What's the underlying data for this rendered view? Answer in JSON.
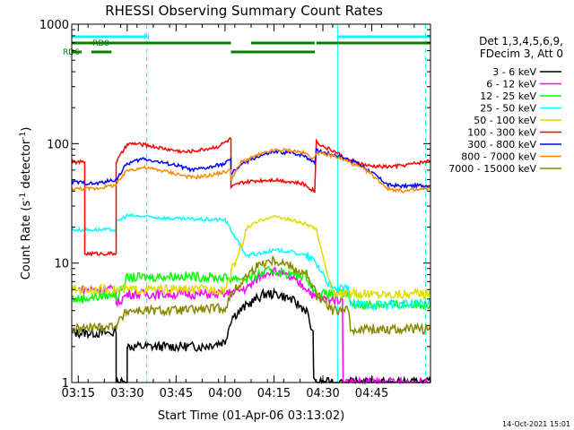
{
  "chart_data": {
    "type": "line",
    "title": "RHESSI Observing Summary Count Rates",
    "xlabel": "Start Time (01-Apr-06 03:13:02)",
    "ylabel_main": "Count Rate (s",
    "ylabel_sup1": "-1",
    "ylabel_mid": " detector",
    "ylabel_sup2": "-1",
    "ylabel_end": ")",
    "y_scale": "log",
    "xlim_min": [
      193,
      303
    ],
    "ylim": [
      1,
      1000
    ],
    "x_ticks": [
      {
        "value": 195,
        "label": "03:15"
      },
      {
        "value": 210,
        "label": "03:30"
      },
      {
        "value": 225,
        "label": "03:45"
      },
      {
        "value": 240,
        "label": "04:00"
      },
      {
        "value": 255,
        "label": "04:15"
      },
      {
        "value": 270,
        "label": "04:30"
      },
      {
        "value": 285,
        "label": "04:45"
      }
    ],
    "y_ticks": [
      {
        "value": 1,
        "label": "1"
      },
      {
        "value": 10,
        "label": "10"
      },
      {
        "value": 100,
        "label": "100"
      },
      {
        "value": 1000,
        "label": "1000"
      }
    ],
    "legend_header": [
      "Det 1,3,4,5,6,9,",
      "FDecim 3, Att 0"
    ],
    "legend_position": "right",
    "series": [
      {
        "name": "3 - 6 keV",
        "color": "#000000",
        "x": [
          193,
          206.6,
          206.6,
          210,
          210,
          225,
          233,
          240,
          242,
          247,
          252,
          256,
          260,
          265,
          267,
          267.2,
          270,
          274,
          278,
          278.2,
          303
        ],
        "y": [
          2.6,
          2.6,
          1,
          1,
          2,
          2,
          2,
          2.2,
          3.5,
          4.5,
          5.5,
          5.5,
          5,
          4,
          2.5,
          1,
          1,
          1,
          1,
          1,
          1
        ]
      },
      {
        "name": "6 - 12 keV",
        "color": "#ff00ff",
        "x": [
          195,
          206.6,
          206.6,
          210,
          225,
          240,
          247,
          250,
          253,
          256,
          260,
          265,
          268,
          273,
          274,
          276,
          276.2,
          303
        ],
        "y": [
          6,
          6,
          4.5,
          5.5,
          5.5,
          5.5,
          6.2,
          7.5,
          8.5,
          8.5,
          7.5,
          6.2,
          5,
          5,
          5,
          5,
          1,
          1
        ]
      },
      {
        "name": "12 - 25 keV",
        "color": "#00ff00",
        "x": [
          193,
          195,
          206.6,
          206.6,
          210,
          225,
          240,
          247,
          250,
          253,
          256,
          260,
          265,
          268,
          273,
          278,
          278.5,
          290,
          303
        ],
        "y": [
          5,
          5,
          5.5,
          5,
          7.5,
          7.8,
          7.5,
          7.5,
          8,
          8.5,
          8.5,
          8,
          7.8,
          5.5,
          5.5,
          5.5,
          4.5,
          4.5,
          4.5
        ]
      },
      {
        "name": "25 - 50 keV",
        "color": "#00ffff",
        "x": [
          193,
          200,
          206.6,
          206.6,
          210,
          225,
          240,
          247,
          250,
          253,
          256,
          260,
          265,
          268,
          273,
          278,
          278.5,
          290,
          303
        ],
        "y": [
          19,
          19,
          19,
          22,
          25,
          23.5,
          23,
          11,
          12,
          12.5,
          12.8,
          12.5,
          11.5,
          10,
          6,
          6,
          4.5,
          4.5,
          4.5
        ]
      },
      {
        "name": "50 - 100 keV",
        "color": "#dddd00",
        "x": [
          193,
          195,
          206.6,
          206.6,
          210,
          225,
          240,
          247,
          250,
          253,
          256,
          260,
          265,
          268,
          273,
          278,
          278.5,
          303
        ],
        "y": [
          6,
          6,
          6,
          6,
          6,
          6,
          6,
          20,
          22,
          24,
          24.5,
          23,
          21,
          19,
          5.5,
          5.5,
          5.5,
          5.5
        ]
      },
      {
        "name": "100 - 300 keV",
        "color": "#ff0000",
        "x": [
          193,
          197,
          197,
          206.6,
          206.6,
          210,
          212,
          216,
          222,
          228,
          234,
          238,
          241.8,
          241.8,
          245,
          250,
          255,
          260,
          264,
          267.5,
          268,
          270,
          274,
          277,
          280,
          284,
          290,
          295,
          303
        ],
        "y": [
          70,
          70,
          12,
          12,
          70,
          98,
          100,
          97,
          90,
          85,
          90,
          95,
          110,
          43,
          47,
          49,
          50,
          48,
          46,
          40,
          105,
          95,
          85,
          75,
          70,
          65,
          64,
          66,
          72
        ]
      },
      {
        "name": "300 - 800 keV",
        "color": "#0000ff",
        "x": [
          193,
          200,
          206.6,
          210,
          215,
          220,
          225,
          230,
          235,
          240,
          241.8,
          241.8,
          245,
          250,
          255,
          260,
          264,
          267.5,
          268,
          270,
          274,
          277,
          280,
          284,
          290,
          295,
          303
        ],
        "y": [
          48,
          46,
          50,
          68,
          75,
          70,
          66,
          60,
          63,
          68,
          75,
          55,
          67,
          78,
          85,
          84,
          80,
          70,
          88,
          85,
          80,
          75,
          70,
          60,
          45,
          44,
          45
        ]
      },
      {
        "name": "800 - 7000 keV",
        "color": "#ff8800",
        "x": [
          193,
          200,
          206.6,
          210,
          215,
          220,
          225,
          230,
          235,
          240,
          241.8,
          241.8,
          245,
          250,
          255,
          260,
          264,
          267.5,
          268,
          270,
          274,
          277,
          280,
          284,
          290,
          295,
          303
        ],
        "y": [
          42,
          42,
          45,
          60,
          63,
          60,
          56,
          52,
          54,
          58,
          60,
          50,
          70,
          80,
          88,
          88,
          84,
          75,
          85,
          82,
          78,
          72,
          66,
          58,
          42,
          40,
          42
        ]
      },
      {
        "name": "7000 - 15000 keV",
        "color": "#888800",
        "x": [
          193,
          195,
          206.6,
          206.6,
          210,
          225,
          240,
          242,
          247,
          250,
          253,
          256,
          260,
          265,
          268,
          273,
          278,
          278.5,
          303
        ],
        "y": [
          2.8,
          2.8,
          3,
          3,
          4,
          4,
          4.2,
          5.5,
          8,
          9.5,
          10.5,
          10.5,
          9.5,
          8,
          5.5,
          4,
          4,
          2.8,
          2.8
        ]
      }
    ],
    "flag_bars": [
      {
        "label": "",
        "color": "#00ffff",
        "segments": [
          [
            193,
            216
          ],
          [
            274.5,
            303
          ]
        ]
      },
      {
        "label": "N",
        "color": "#00ffff",
        "segments": []
      },
      {
        "label": "RD0",
        "color": "#008000",
        "segments": [
          [
            193,
            241.8
          ],
          [
            248,
            267.5
          ],
          [
            268,
            303
          ]
        ]
      },
      {
        "label": "RD6",
        "color": "#008000",
        "segments": [
          [
            193,
            196
          ],
          [
            199,
            205.2
          ],
          [
            241.8,
            267.5
          ]
        ]
      }
    ],
    "vertical_markers": [
      {
        "x": 216,
        "style": "dashed",
        "color": "#00ffff"
      },
      {
        "x": 274.5,
        "style": "solid",
        "color": "#00ffff"
      },
      {
        "x": 301.5,
        "style": "dashed",
        "color": "#00ffff"
      }
    ],
    "grid": false
  },
  "footer_date": "14-Oct-2021 15:01"
}
